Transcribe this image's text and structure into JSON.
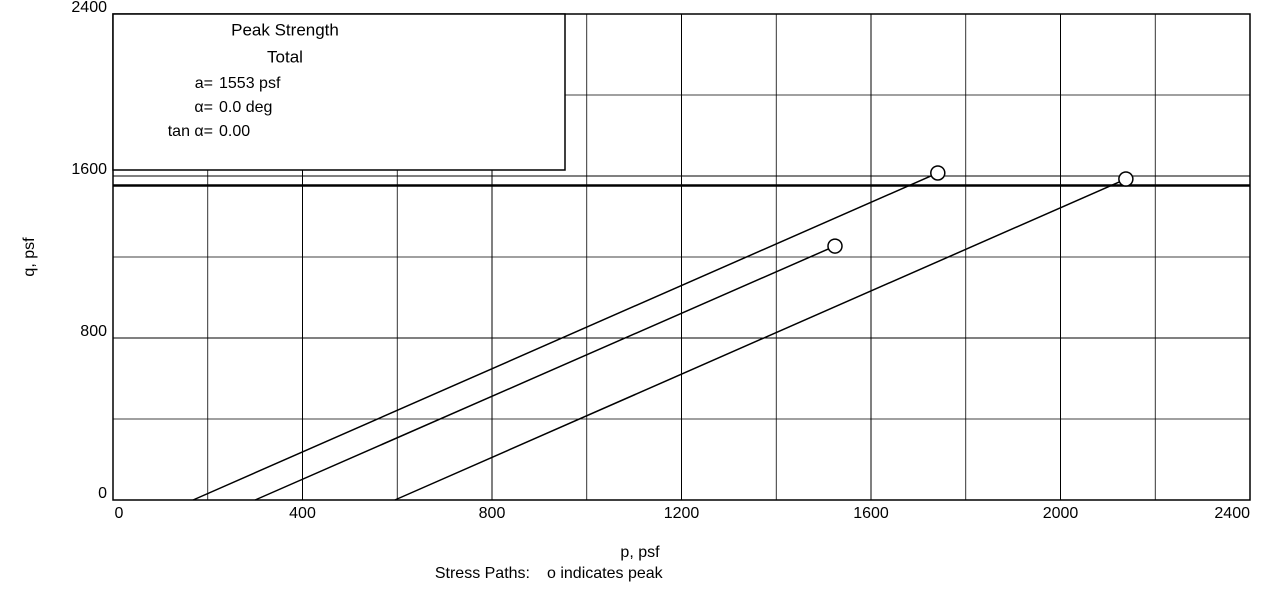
{
  "chart_data": {
    "type": "line",
    "xlabel": "p, psf",
    "ylabel": "q, psf",
    "caption": [
      "Stress Paths:",
      "o indicates peak"
    ],
    "legend_box": {
      "title": "Peak Strength",
      "subtitle": "Total",
      "rows": [
        [
          "a=",
          "1553 psf"
        ],
        [
          "α=",
          "0.0 deg"
        ],
        [
          "tan α=",
          "0.00"
        ]
      ]
    },
    "failure_line": {
      "value": 1553
    },
    "xlim": [
      0,
      2400
    ],
    "ylim": [
      0,
      2400
    ],
    "xticks": [
      0,
      400,
      800,
      1200,
      1600,
      2000,
      2400
    ],
    "yticks": [
      0,
      800,
      1600,
      2400
    ],
    "xminor": [
      200,
      600,
      1000,
      1400,
      1800,
      2200
    ],
    "yminor": [
      400,
      1200,
      2000
    ],
    "grid": true,
    "color": "#000000",
    "series": [
      {
        "x": [
          169,
          1741
        ],
        "values": [
          0,
          1615
        ]
      },
      {
        "x": [
          300,
          1524
        ],
        "values": [
          0,
          1254
        ]
      },
      {
        "x": [
          595,
          2138
        ],
        "values": [
          0,
          1585
        ]
      }
    ]
  }
}
